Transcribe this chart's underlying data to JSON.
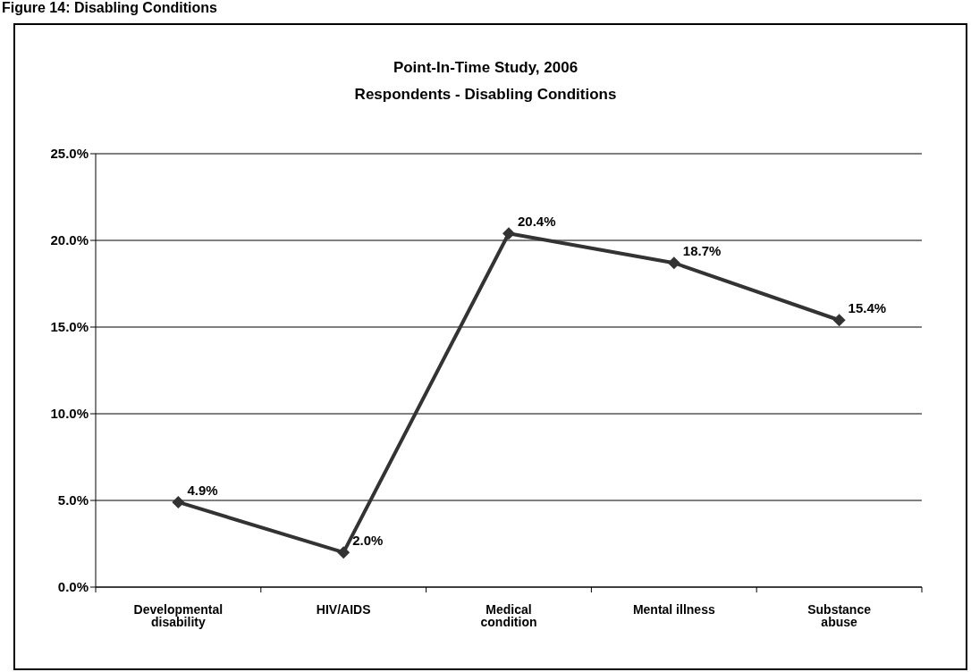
{
  "chart_data": {
    "type": "line",
    "title": "Point-In-Time Study, 2006\nRespondents - Disabling Conditions",
    "annotations": [
      "Figure 14: Disabling Conditions"
    ],
    "categories": [
      "Developmental disability",
      "HIV/AIDS",
      "Medical condition",
      "Mental illness",
      "Substance abuse"
    ],
    "series": [
      {
        "color": "#333333",
        "values": [
          4.9,
          2.0,
          20.4,
          18.7,
          15.4
        ],
        "value_labels": [
          "4.9%",
          "2.0%",
          "20.4%",
          "18.7%",
          "15.4%"
        ]
      }
    ],
    "ylim": [
      0,
      25
    ],
    "yticks": [
      {
        "value": 0,
        "label": "0.0%"
      },
      {
        "value": 5,
        "label": "5.0%"
      },
      {
        "value": 10,
        "label": "10.0%"
      },
      {
        "value": 15,
        "label": "15.0%"
      },
      {
        "value": 20,
        "label": "20.0%"
      },
      {
        "value": 25,
        "label": "25.0%"
      }
    ],
    "grid": "y",
    "legend": false,
    "marker": "diamond",
    "line_style": "solid"
  }
}
